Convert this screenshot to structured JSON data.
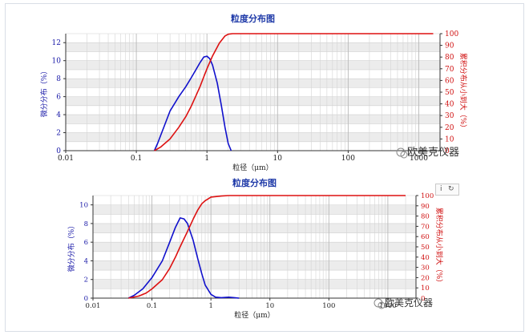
{
  "chart_data": [
    {
      "type": "line",
      "title": "粒度分布图",
      "xlabel": "粒径（μm）",
      "ylabel_left": "微分分布（%）",
      "ylabel_right": "累积分布从小到大（%）",
      "x_scale": "log",
      "xlim": [
        0.01,
        2000
      ],
      "ylim_left": [
        0,
        13
      ],
      "ylim_right": [
        0,
        100
      ],
      "y_ticks_left": [
        "0",
        "2",
        "4",
        "6",
        "8",
        "10",
        "12"
      ],
      "y_ticks_right": [
        "0",
        "10",
        "20",
        "30",
        "40",
        "50",
        "60",
        "70",
        "80",
        "90",
        "100"
      ],
      "x_ticks": [
        "0.01",
        "0.1",
        "1",
        "10",
        "100",
        "1000"
      ],
      "grid": true,
      "series": [
        {
          "axis": "left",
          "color": "#1010cc",
          "x": [
            0.18,
            0.2,
            0.25,
            0.3,
            0.4,
            0.5,
            0.6,
            0.7,
            0.8,
            0.9,
            1.0,
            1.1,
            1.2,
            1.4,
            1.6,
            1.8,
            2.0,
            2.2
          ],
          "values": [
            0,
            0.8,
            2.8,
            4.4,
            6.0,
            7.1,
            8.1,
            9.0,
            9.8,
            10.4,
            10.5,
            10.2,
            9.5,
            7.5,
            5.0,
            2.6,
            0.8,
            0
          ]
        },
        {
          "axis": "right",
          "color": "#dd1111",
          "x": [
            0.18,
            0.22,
            0.3,
            0.4,
            0.5,
            0.6,
            0.7,
            0.8,
            0.9,
            1.0,
            1.2,
            1.5,
            1.8,
            2.0,
            2.3,
            3.0,
            10,
            100,
            1000,
            1600
          ],
          "values": [
            0,
            3,
            10,
            20,
            29,
            38,
            47,
            55,
            63,
            70,
            81,
            92,
            98,
            99.5,
            100,
            100,
            100,
            100,
            100,
            100
          ]
        }
      ],
      "watermark": "欧美克仪器"
    },
    {
      "type": "line",
      "title": "粒度分布图",
      "xlabel": "粒径（μm）",
      "ylabel_left": "微分分布（%）",
      "ylabel_right": "累积分布从小到大（%）",
      "x_scale": "log",
      "xlim": [
        0.01,
        3000
      ],
      "ylim_left": [
        0,
        11
      ],
      "ylim_right": [
        0,
        100
      ],
      "y_ticks_left": [
        "0",
        "2",
        "4",
        "6",
        "8",
        "10"
      ],
      "y_ticks_right": [
        "0",
        "10",
        "20",
        "30",
        "40",
        "50",
        "60",
        "70",
        "80",
        "90",
        "100"
      ],
      "x_ticks": [
        "0.01",
        "0.1",
        "1",
        "10",
        "100",
        "1000"
      ],
      "grid": true,
      "series": [
        {
          "axis": "left",
          "color": "#1010cc",
          "x": [
            0.04,
            0.05,
            0.07,
            0.1,
            0.15,
            0.2,
            0.25,
            0.3,
            0.35,
            0.4,
            0.5,
            0.6,
            0.7,
            0.8,
            1.0,
            1.2,
            1.5,
            2.0,
            2.5,
            3.0
          ],
          "values": [
            0,
            0.3,
            1.0,
            2.2,
            4.0,
            6.0,
            7.6,
            8.6,
            8.5,
            8.0,
            6.2,
            4.2,
            2.6,
            1.4,
            0.4,
            0.1,
            0.05,
            0.1,
            0.05,
            0
          ]
        },
        {
          "axis": "right",
          "color": "#dd1111",
          "x": [
            0.04,
            0.06,
            0.08,
            0.1,
            0.15,
            0.2,
            0.25,
            0.3,
            0.4,
            0.5,
            0.6,
            0.7,
            0.8,
            1.0,
            1.5,
            2.0,
            5,
            10,
            100,
            1000,
            2000
          ],
          "values": [
            0,
            2,
            5,
            9,
            18,
            29,
            40,
            50,
            65,
            77,
            86,
            92,
            95,
            98.5,
            99.5,
            100,
            100,
            100,
            100,
            100,
            100
          ]
        }
      ],
      "watermark": "欧美克仪器",
      "toolbox": [
        "i",
        "↻"
      ]
    }
  ]
}
